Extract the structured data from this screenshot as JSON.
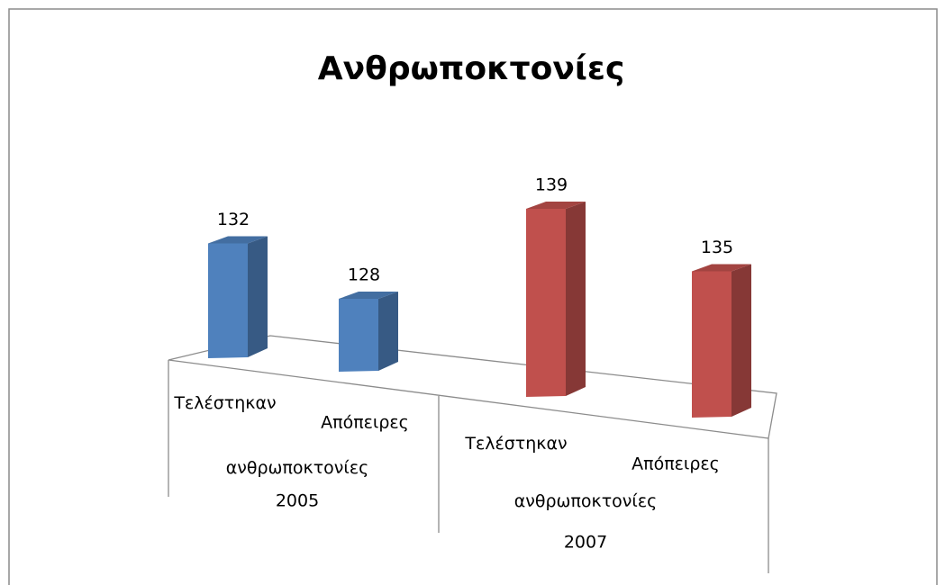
{
  "chart_data": {
    "type": "bar3d",
    "title": "Ανθρωποκτονίες",
    "categories": [
      "Τελέστηκαν ανθρωποκτονίες",
      "Απόπειρες",
      "Τελέστηκαν ανθρωποκτονίες",
      "Απόπειρες"
    ],
    "groups": [
      "2005",
      "2007"
    ],
    "values": [
      132,
      128,
      139,
      135
    ],
    "colors": [
      "#4f81bd",
      "#4f81bd",
      "#c0504d",
      "#c0504d"
    ]
  }
}
